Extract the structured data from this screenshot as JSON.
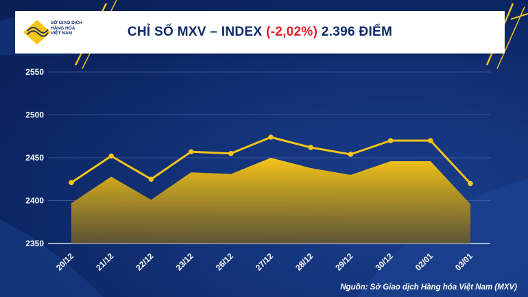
{
  "header": {
    "logo_text": [
      "SỞ GIAO DỊCH",
      "HÀNG HÓA",
      "VIỆT NAM"
    ],
    "title_prefix": "CHỈ SỐ MXV – INDEX ",
    "title_change": "(-2,02%)",
    "title_suffix": " 2.396 ĐIỂM"
  },
  "source": "Nguồn: Sở Giao dịch Hàng hóa Việt Nam (MXV)",
  "colors": {
    "line": "#f5c518",
    "area_top": "#f5c518",
    "background": "#0d2a6b",
    "negative": "#e41e26"
  },
  "chart_data": {
    "type": "line",
    "categories": [
      "20/12",
      "21/12",
      "22/12",
      "23/12",
      "26/12",
      "27/12",
      "28/12",
      "29/12",
      "30/12",
      "02/01",
      "03/01"
    ],
    "series": [
      {
        "values": [
          2421,
          2452,
          2425,
          2457,
          2455,
          2474,
          2462,
          2454,
          2470,
          2470,
          2420
        ]
      },
      {
        "type": "area",
        "values": [
          2397,
          2428,
          2401,
          2433,
          2431,
          2450,
          2438,
          2430,
          2446,
          2446,
          2396
        ]
      }
    ],
    "yticks": [
      2350,
      2400,
      2450,
      2500,
      2550
    ],
    "ylim": [
      2350,
      2550
    ],
    "grid": true
  }
}
